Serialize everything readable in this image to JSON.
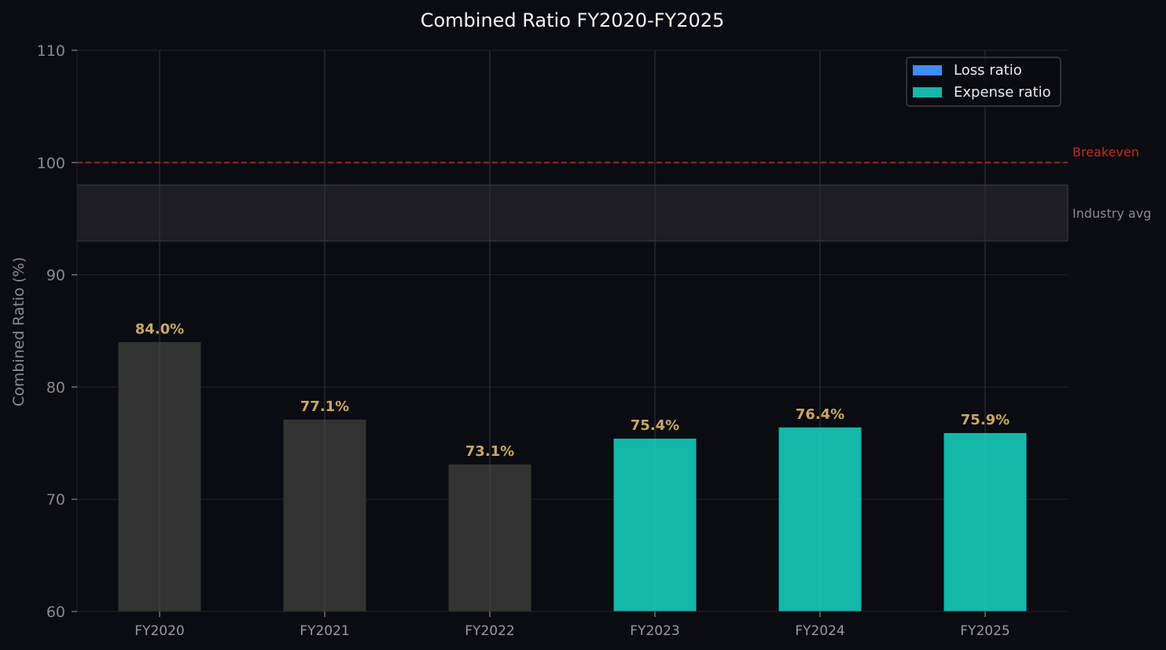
{
  "chart_data": {
    "type": "bar",
    "title": "Combined Ratio FY2020-FY2025",
    "xlabel": "",
    "ylabel": "Combined Ratio (%)",
    "ylim": [
      60,
      110
    ],
    "yticks": [
      60,
      70,
      80,
      90,
      100,
      110
    ],
    "grid": true,
    "categories": [
      "FY2020",
      "FY2021",
      "FY2022",
      "FY2023",
      "FY2024",
      "FY2025"
    ],
    "values": [
      84.0,
      77.1,
      73.1,
      75.4,
      76.4,
      75.9
    ],
    "data_labels": [
      "84.0%",
      "77.1%",
      "73.1%",
      "75.4%",
      "76.4%",
      "75.9%"
    ],
    "bar_colors": [
      "#333333",
      "#333333",
      "#333333",
      "#13b8a8",
      "#13b8a8",
      "#13b8a8"
    ],
    "label_color": "#c8a863",
    "legend": {
      "position": "top-right",
      "entries": [
        {
          "label": "Loss ratio",
          "color": "#3f8cff"
        },
        {
          "label": "Expense ratio",
          "color": "#13b8a8"
        }
      ]
    },
    "reference_line": {
      "y": 100,
      "label": "Breakeven",
      "color": "#c0301c"
    },
    "reference_band": {
      "y0": 93,
      "y1": 98,
      "label": "Industry avg",
      "color": "#8a8a8a"
    }
  }
}
